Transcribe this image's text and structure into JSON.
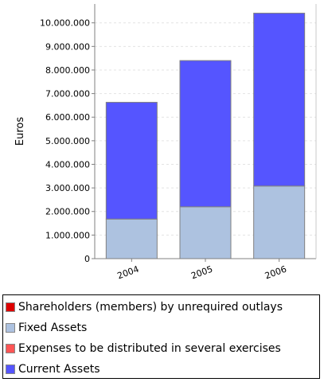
{
  "chart_data": {
    "type": "bar",
    "stacked": true,
    "categories": [
      "2004",
      "2005",
      "2006"
    ],
    "ylabel": "Euros",
    "ylim": [
      0,
      10800000
    ],
    "yticks": [
      0,
      1000000,
      2000000,
      3000000,
      4000000,
      5000000,
      6000000,
      7000000,
      8000000,
      9000000,
      10000000
    ],
    "ytick_labels": [
      "0",
      "1.000.000",
      "2.000.000",
      "3.000.000",
      "4.000.000",
      "5.000.000",
      "6.000.000",
      "7.000.000",
      "8.000.000",
      "9.000.000",
      "10.000.000"
    ],
    "grid": true,
    "legend_position": "bottom",
    "series": [
      {
        "name": "Shareholders (members) by unrequired outlays",
        "color": "#dd0000",
        "values": [
          0,
          0,
          0
        ]
      },
      {
        "name": "Fixed Assets",
        "color": "#adc2e0",
        "values": [
          1680000,
          2200000,
          3080000
        ]
      },
      {
        "name": "Expenses to be distributed in several exercises",
        "color": "#ff5555",
        "values": [
          0,
          0,
          0
        ]
      },
      {
        "name": "Current Assets",
        "color": "#5555ff",
        "values": [
          4950000,
          6200000,
          7330000
        ]
      }
    ]
  }
}
